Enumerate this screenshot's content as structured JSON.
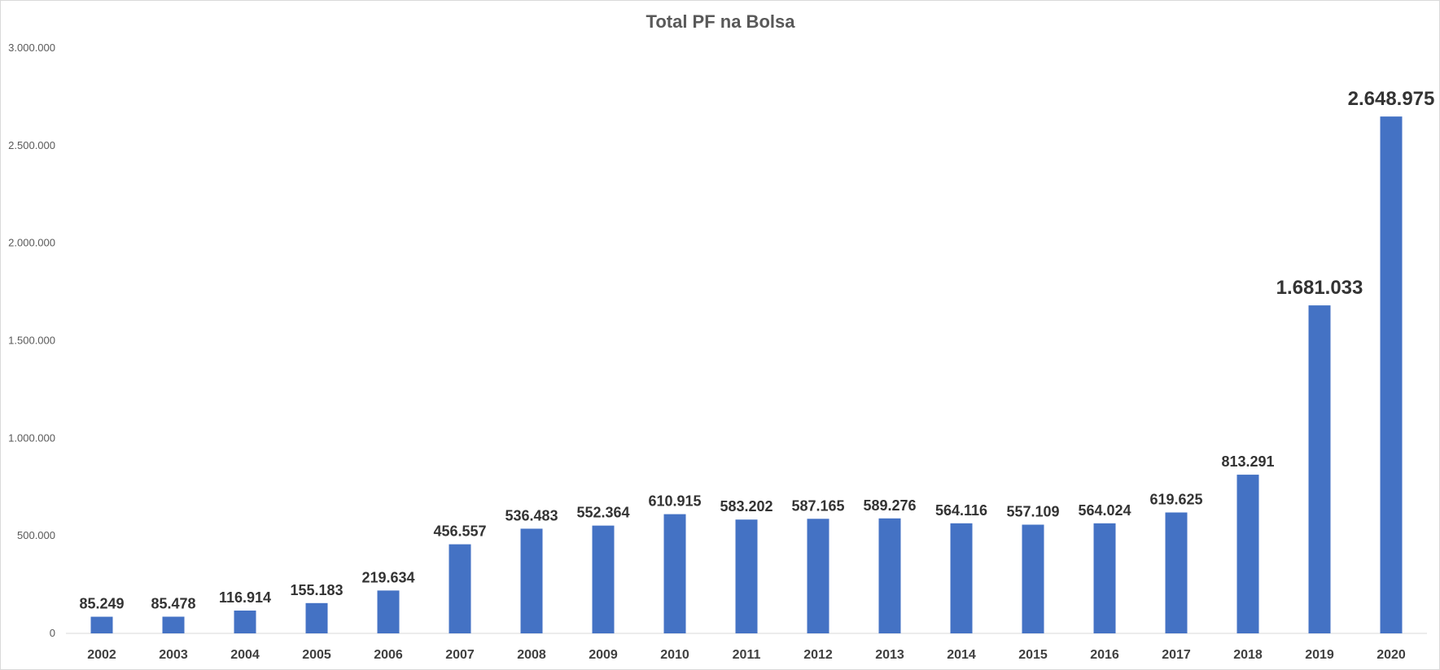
{
  "chart_data": {
    "type": "bar",
    "title": "Total PF na Bolsa",
    "xlabel": "",
    "ylabel": "",
    "categories": [
      "2002",
      "2003",
      "2004",
      "2005",
      "2006",
      "2007",
      "2008",
      "2009",
      "2010",
      "2011",
      "2012",
      "2013",
      "2014",
      "2015",
      "2016",
      "2017",
      "2018",
      "2019",
      "2020"
    ],
    "values": [
      85249,
      85478,
      116914,
      155183,
      219634,
      456557,
      536483,
      552364,
      610915,
      583202,
      587165,
      589276,
      564116,
      557109,
      564024,
      619625,
      813291,
      1681033,
      2648975
    ],
    "data_labels": [
      "85.249",
      "85.478",
      "116.914",
      "155.183",
      "219.634",
      "456.557",
      "536.483",
      "552.364",
      "610.915",
      "583.202",
      "587.165",
      "589.276",
      "564.116",
      "557.109",
      "564.024",
      "619.625",
      "813.291",
      "1.681.033",
      "2.648.975"
    ],
    "ylim": [
      0,
      3000000
    ],
    "y_ticks": [
      0,
      500000,
      1000000,
      1500000,
      2000000,
      2500000,
      3000000
    ],
    "y_tick_labels": [
      "0",
      "500.000",
      "1.000.000",
      "1.500.000",
      "2.000.000",
      "2.500.000",
      "3.000.000"
    ],
    "grid": false,
    "legend": "none",
    "bar_color": "#4472C4"
  }
}
